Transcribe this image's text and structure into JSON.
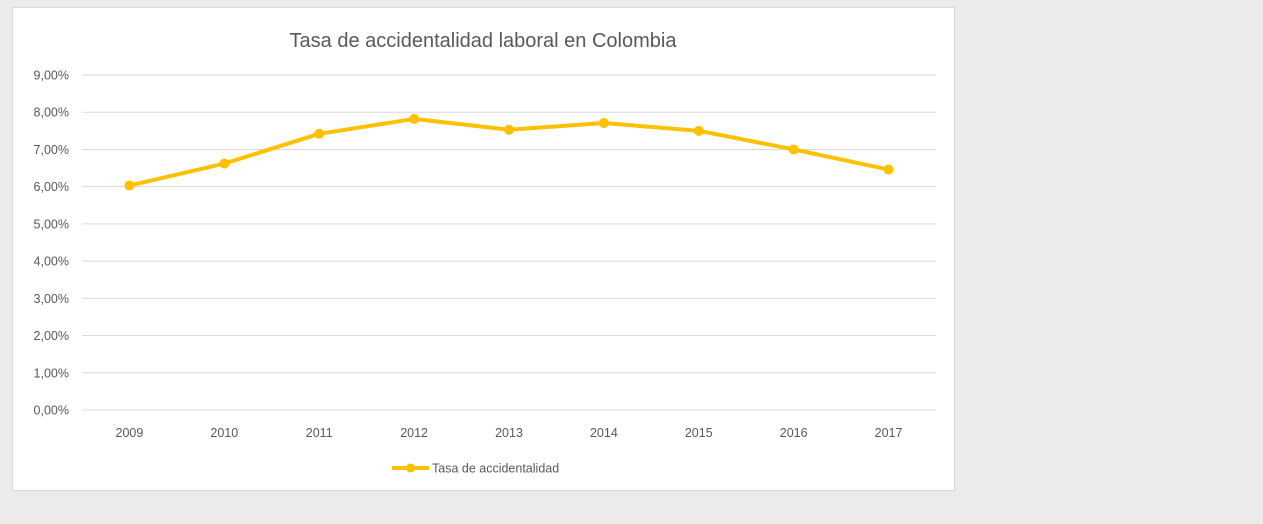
{
  "chart_data": {
    "type": "line",
    "title": "Tasa de accidentalidad laboral en Colombia",
    "categories": [
      "2009",
      "2010",
      "2011",
      "2012",
      "2013",
      "2014",
      "2015",
      "2016",
      "2017"
    ],
    "series": [
      {
        "name": "Tasa de accidentalidad",
        "values": [
          6.03,
          6.62,
          7.42,
          7.82,
          7.53,
          7.71,
          7.5,
          7.0,
          6.46
        ],
        "color": "#ffc000"
      }
    ],
    "ylim": [
      0,
      9
    ],
    "yticks": [
      "0,00%",
      "1,00%",
      "2,00%",
      "3,00%",
      "4,00%",
      "5,00%",
      "6,00%",
      "7,00%",
      "8,00%",
      "9,00%"
    ],
    "xlabel": "",
    "ylabel": "",
    "grid": true,
    "legend_position": "bottom"
  }
}
